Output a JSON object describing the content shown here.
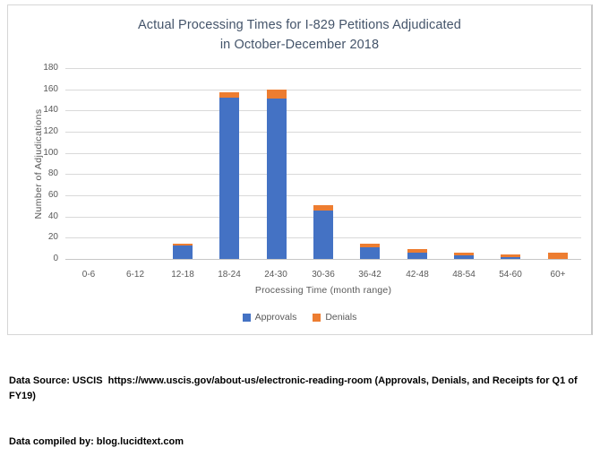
{
  "chart": {
    "title_line1": "Actual Processing Times for I-829 Petitions Adjudicated",
    "title_line2": "in October-December 2018",
    "y_axis_title": "Number of Adjudications",
    "x_axis_title": "Processing Time (month range)"
  },
  "chart_data": {
    "type": "bar",
    "stacked": true,
    "title": "Actual Processing Times for I-829 Petitions Adjudicated in October-December 2018",
    "xlabel": "Processing Time (month range)",
    "ylabel": "Number of Adjudications",
    "categories": [
      "0-6",
      "6-12",
      "12-18",
      "18-24",
      "24-30",
      "30-36",
      "36-42",
      "42-48",
      "48-54",
      "54-60",
      "60+"
    ],
    "series": [
      {
        "name": "Approvals",
        "color": "#4472C4",
        "values": [
          0,
          0,
          13,
          152,
          151,
          46,
          11,
          6,
          3,
          2,
          0
        ]
      },
      {
        "name": "Denials",
        "color": "#ED7D31",
        "values": [
          0,
          0,
          1,
          5,
          9,
          5,
          3,
          3,
          3,
          2,
          6
        ]
      }
    ],
    "ylim": [
      0,
      180
    ],
    "ytick_step": 20,
    "yticks": [
      0,
      20,
      40,
      60,
      80,
      100,
      120,
      140,
      160,
      180
    ],
    "grid": true,
    "legend_position": "bottom"
  },
  "colors": {
    "approvals": "#4472C4",
    "denials": "#ED7D31",
    "gridline": "#D9D9D9",
    "axis_text": "#595959",
    "title_text": "#44546A",
    "footer_text": "#000000",
    "frame_border": "#D6D6D6"
  },
  "footer": {
    "line1": "Data Source: USCIS  https://www.uscis.gov/about-us/electronic-reading-room (Approvals, Denials, and Receipts for Q1 of FY19)",
    "line2": "Data compiled by: blog.lucidtext.com"
  }
}
